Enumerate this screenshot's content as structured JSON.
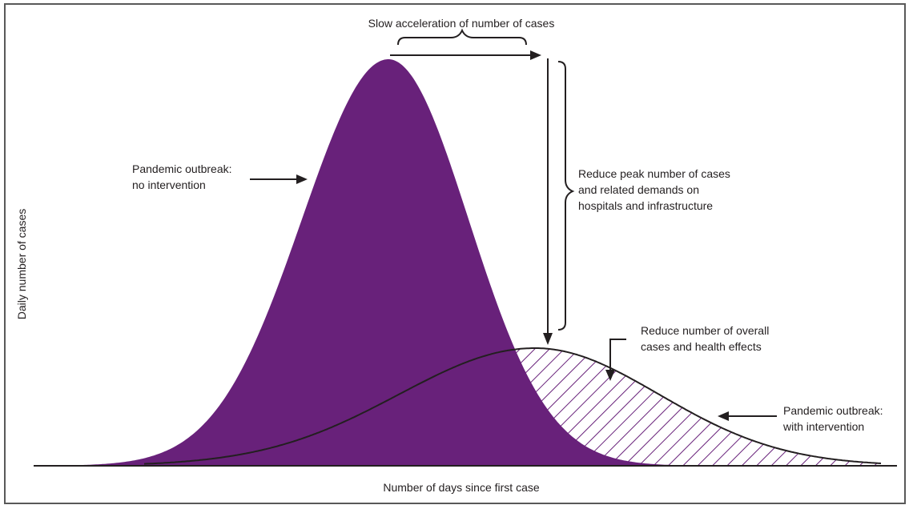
{
  "diagram": {
    "x_axis_label": "Number of days since first case",
    "y_axis_label": "Daily number of cases",
    "annotations": {
      "slow_acceleration": "Slow acceleration of number of cases",
      "no_intervention": [
        "Pandemic outbreak:",
        "no intervention"
      ],
      "reduce_peak": [
        "Reduce peak number of cases",
        "and related demands on",
        "hospitals and infrastructure"
      ],
      "reduce_overall": [
        "Reduce number of overall",
        "cases and health effects"
      ],
      "with_intervention": [
        "Pandemic outbreak:",
        "with intervention"
      ]
    }
  },
  "colors": {
    "purple_fill": "#68217a",
    "hatch": "#68217a",
    "line": "#231f20",
    "frame": "#595959"
  }
}
